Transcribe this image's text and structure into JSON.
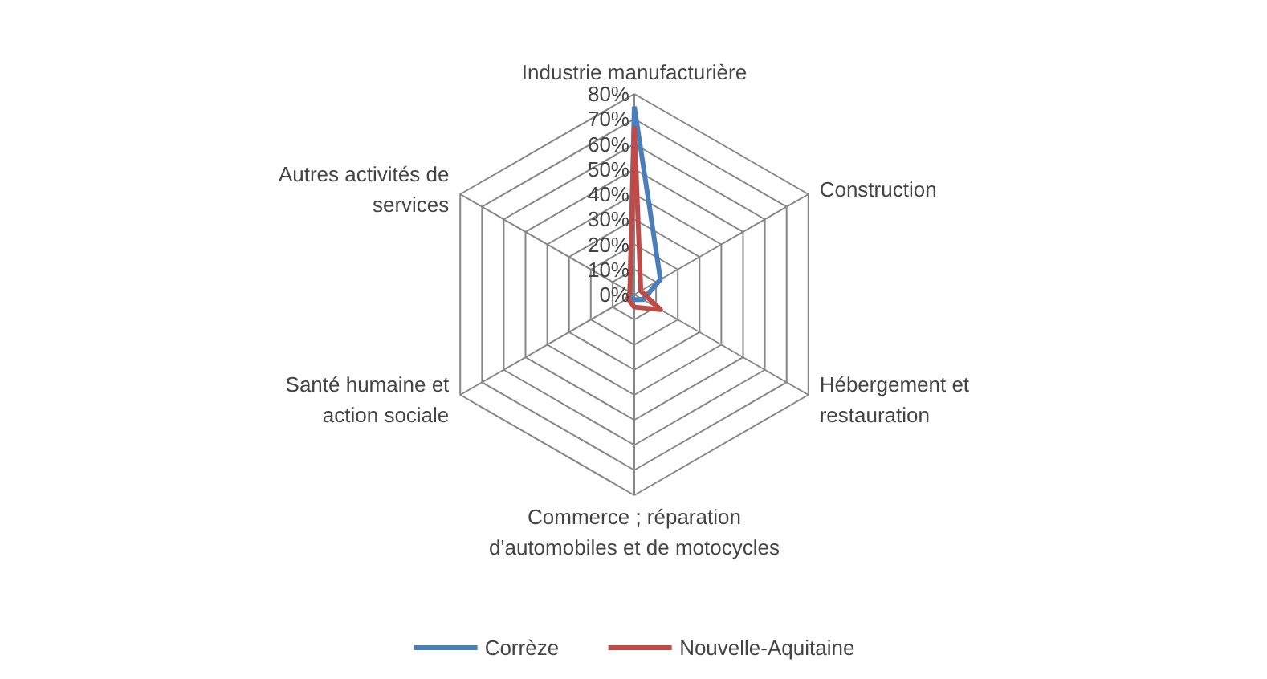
{
  "chart_data": {
    "type": "radar",
    "categories": [
      "Industrie manufacturière",
      "Construction",
      "Hébergement et restauration",
      "Commerce ; réparation d'automobiles et de motocycles",
      "Santé humaine et action sociale",
      "Autres activités de services"
    ],
    "series": [
      {
        "name": "Corrèze",
        "color": "#4a7ebb",
        "values": [
          75,
          12,
          4,
          2,
          2,
          2
        ]
      },
      {
        "name": "Nouvelle-Aquitaine",
        "color": "#be4b48",
        "values": [
          67,
          3,
          12,
          5,
          3,
          2
        ]
      }
    ],
    "ylim": [
      0,
      80
    ],
    "yticks": [
      {
        "value": 0,
        "label": "0%"
      },
      {
        "value": 10,
        "label": "10%"
      },
      {
        "value": 20,
        "label": "20%"
      },
      {
        "value": 30,
        "label": "30%"
      },
      {
        "value": 40,
        "label": "40%"
      },
      {
        "value": 50,
        "label": "50%"
      },
      {
        "value": 60,
        "label": "60%"
      },
      {
        "value": 70,
        "label": "70%"
      },
      {
        "value": 80,
        "label": "80%"
      }
    ],
    "legend": "bottom",
    "marker": "none",
    "line_style": "solid"
  }
}
